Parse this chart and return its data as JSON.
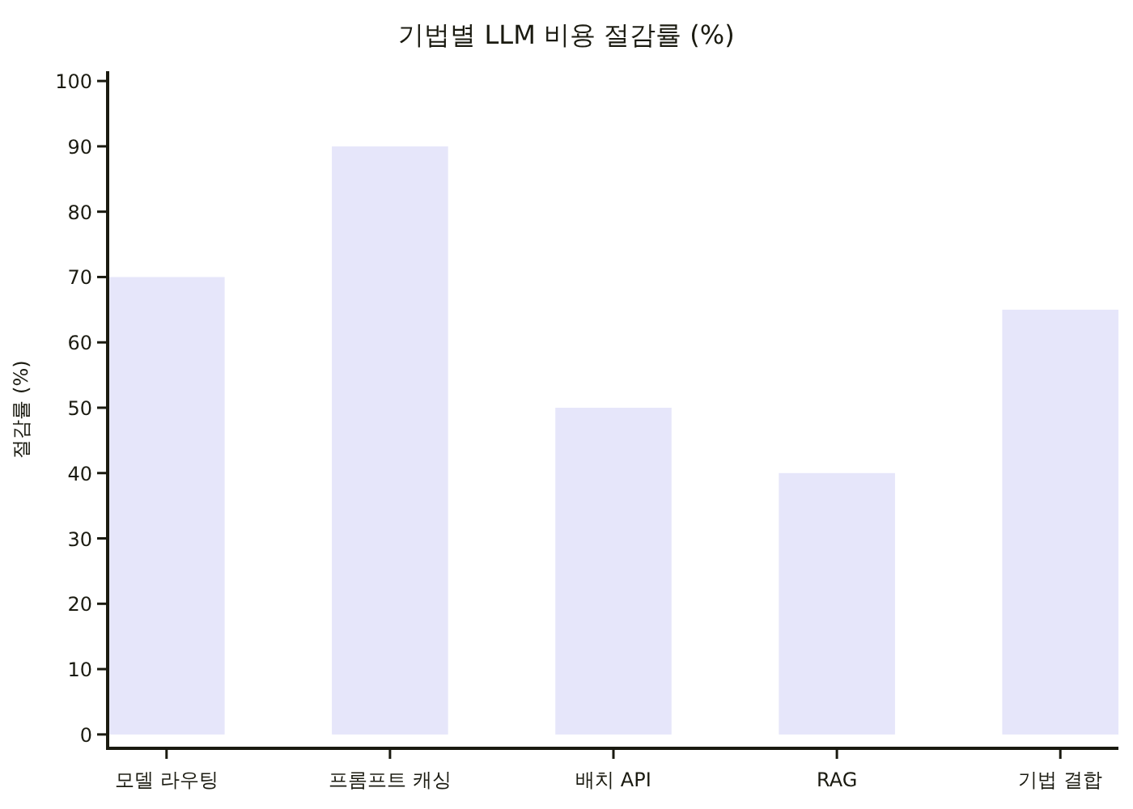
{
  "chart_data": {
    "type": "bar",
    "title": "기법별 LLM 비용 절감률 (%)",
    "ylabel": "절감률 (%)",
    "categories": [
      "모델 라우팅",
      "프롬프트 캐싱",
      "배치 API",
      "RAG",
      "기법 결합"
    ],
    "values": [
      70,
      90,
      50,
      40,
      65
    ],
    "color": "#e6e6fa",
    "ylim": [
      -2,
      101.5
    ],
    "yticks": [
      0,
      10,
      20,
      30,
      40,
      50,
      60,
      70,
      80,
      90,
      100
    ]
  }
}
